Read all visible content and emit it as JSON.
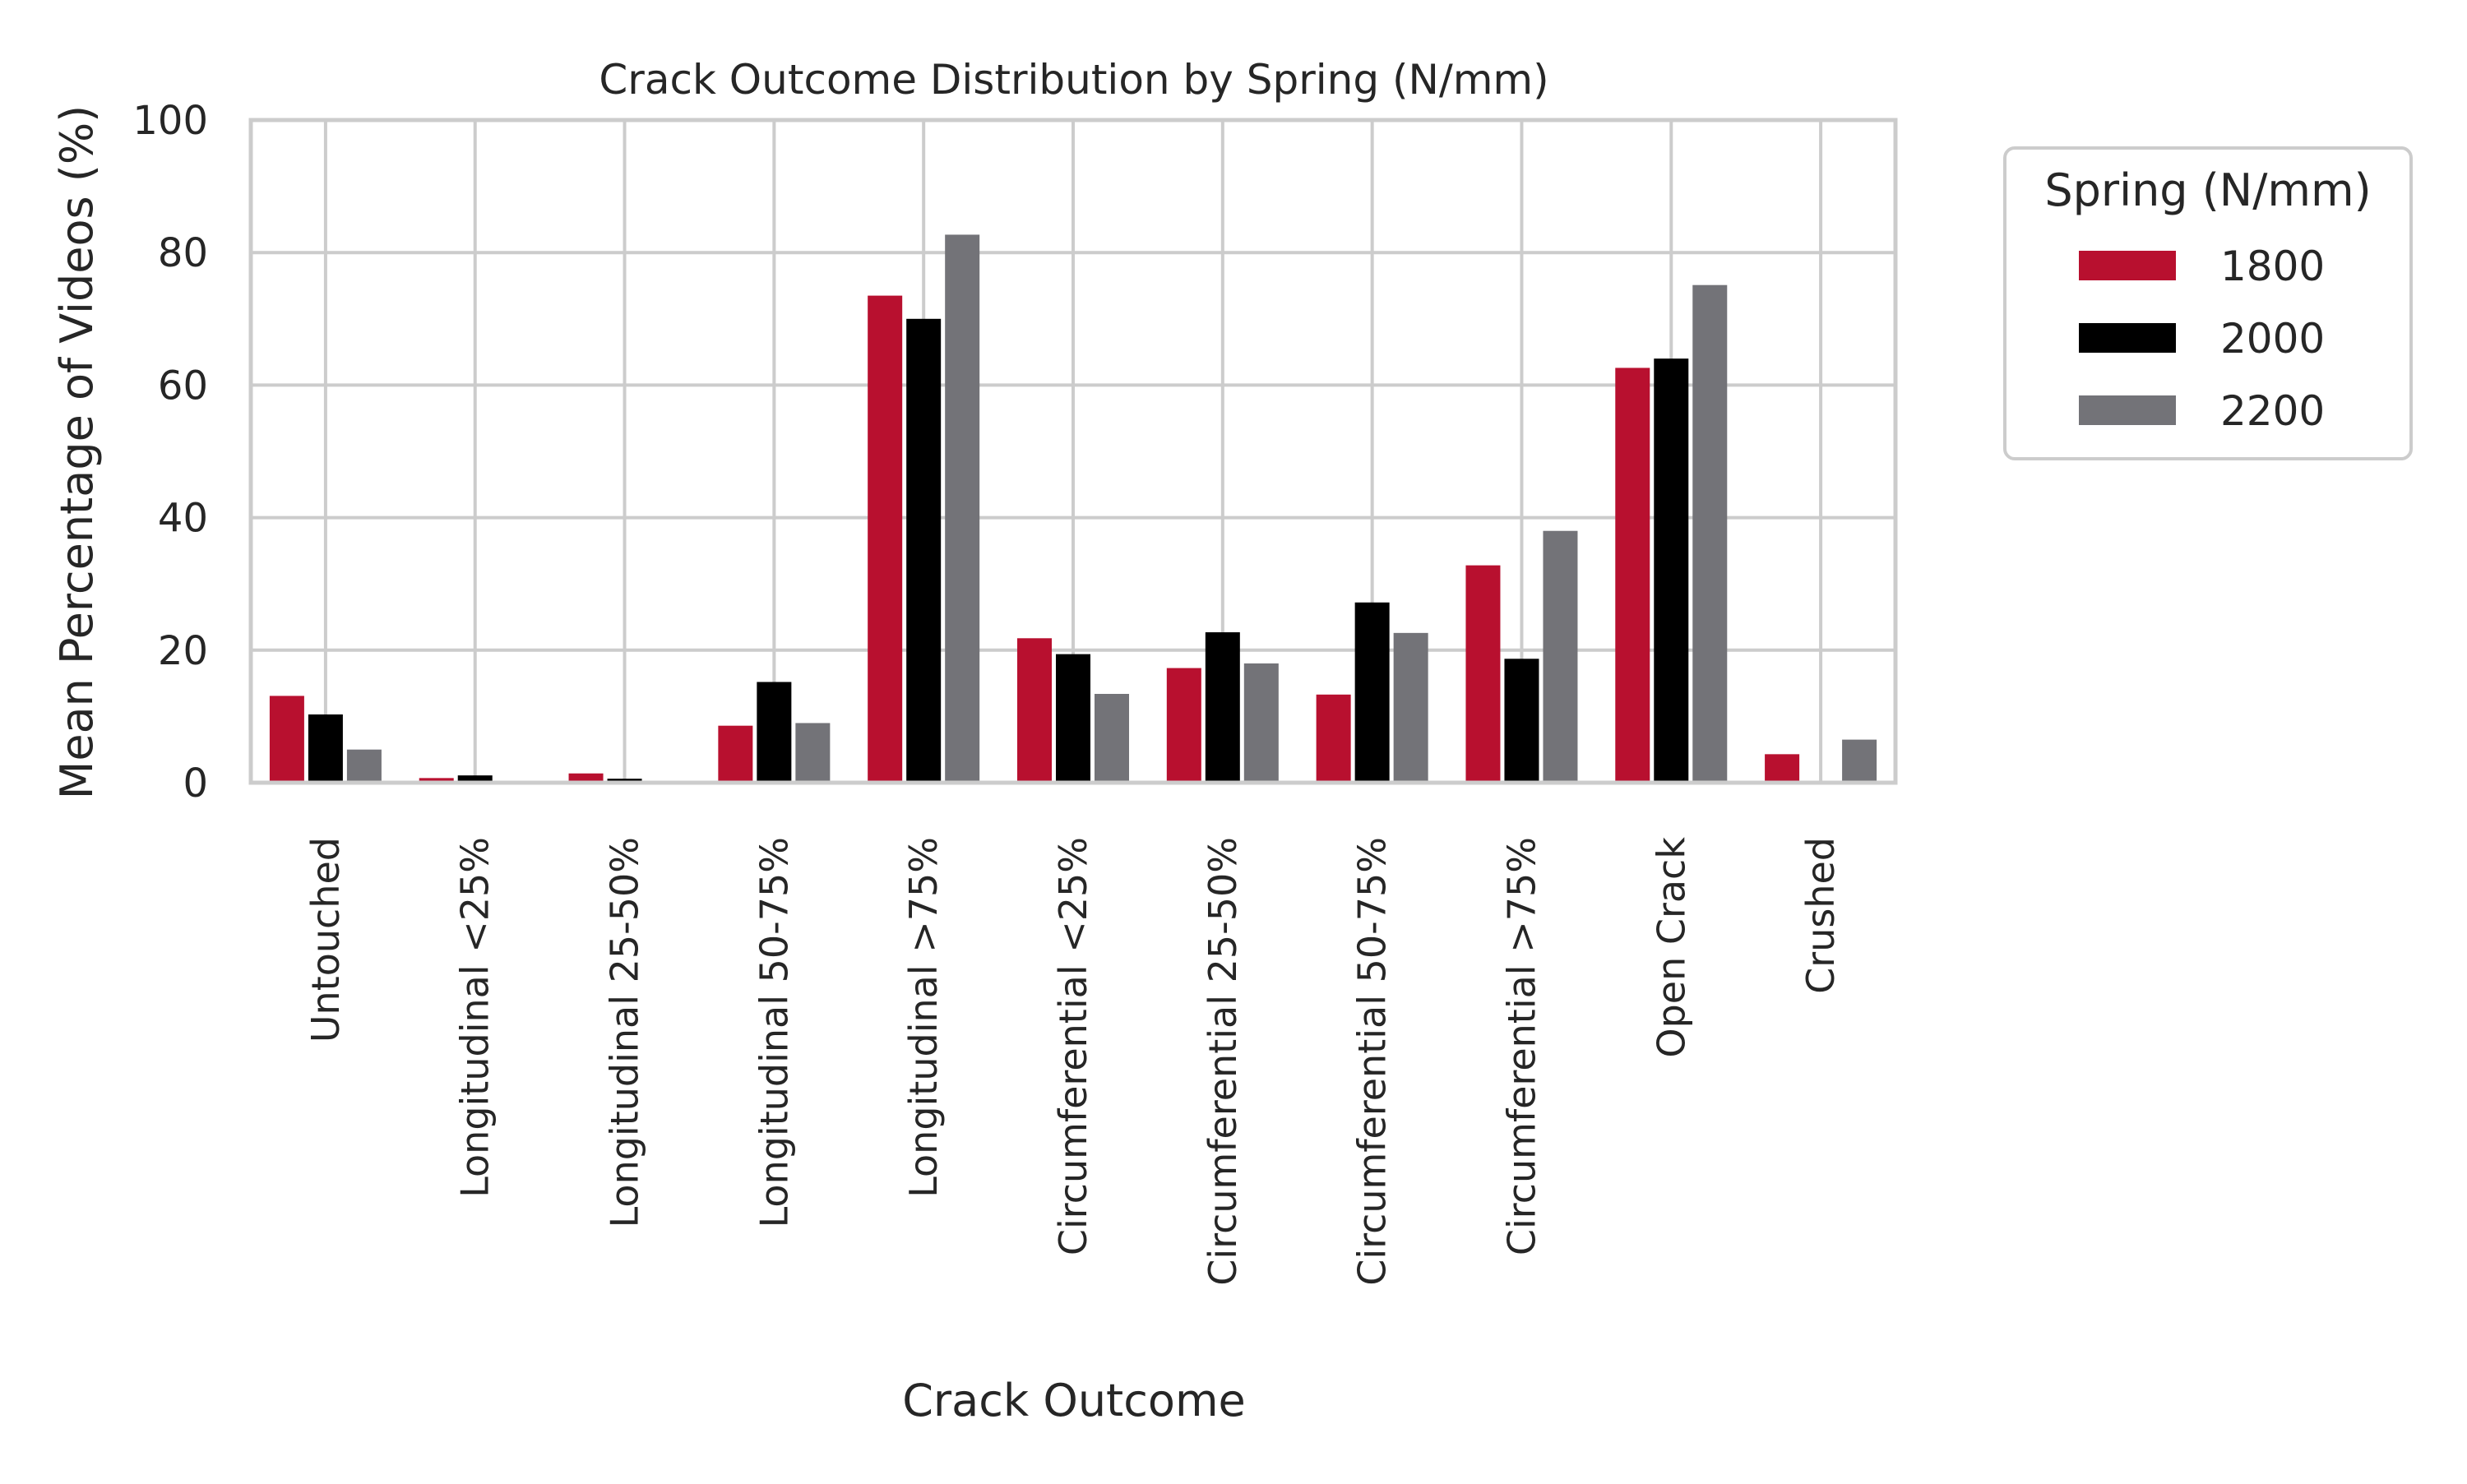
{
  "chart_data": {
    "type": "bar",
    "title": "Crack Outcome Distribution by Spring (N/mm)",
    "xlabel": "Crack Outcome",
    "ylabel": "Mean Percentage of Videos (%)",
    "ylim": [
      0,
      100
    ],
    "yticks": [
      0,
      20,
      40,
      60,
      80,
      100
    ],
    "grid": true,
    "legend": {
      "title": "Spring (N/mm)",
      "placement": "outside-right"
    },
    "categories": [
      "Untouched",
      "Longitudinal <25%",
      "Longitudinal 25-50%",
      "Longitudinal 50-75%",
      "Longitudinal >75%",
      "Circumferential <25%",
      "Circumferential 25-50%",
      "Circumferential 50-75%",
      "Circumferential >75%",
      "Open Crack",
      "Crushed"
    ],
    "series": [
      {
        "name": "1800",
        "color": "#b8102f",
        "values": [
          13.1,
          0.7,
          1.4,
          8.6,
          73.5,
          21.8,
          17.3,
          13.3,
          32.8,
          62.6,
          4.3
        ]
      },
      {
        "name": "2000",
        "color": "#000000",
        "values": [
          10.3,
          1.1,
          0.6,
          15.2,
          70.0,
          19.4,
          22.7,
          27.2,
          18.7,
          64.0,
          0.0
        ]
      },
      {
        "name": "2200",
        "color": "#737378",
        "values": [
          5.0,
          0.0,
          0.0,
          9.0,
          82.7,
          13.4,
          18.0,
          22.6,
          38.0,
          75.1,
          6.5
        ]
      }
    ]
  }
}
